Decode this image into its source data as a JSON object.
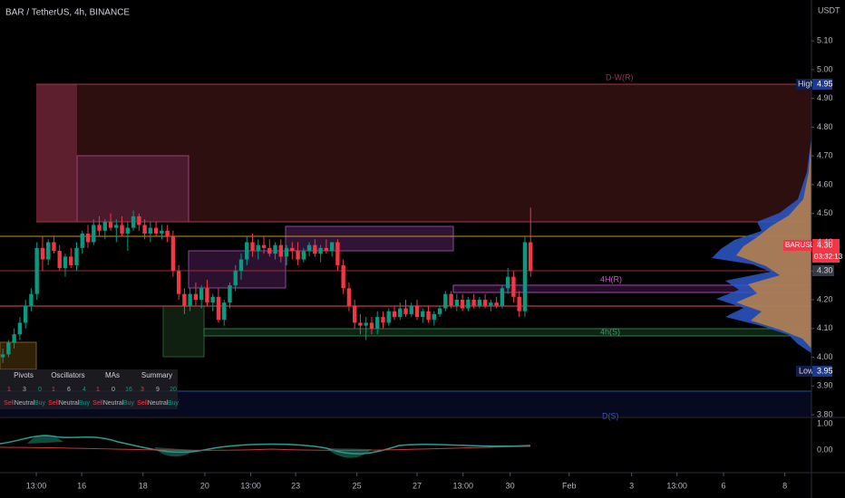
{
  "chart_data": {
    "type": "candlestick",
    "title": "BAR / TetherUS, 4h, BINANCE",
    "y_unit": "USDT",
    "up_color": "#089981",
    "down_color": "#f23645",
    "ohlc": [
      [
        4.0,
        4.03,
        3.98,
        4.01
      ],
      [
        4.01,
        4.06,
        4.0,
        4.05
      ],
      [
        4.05,
        4.1,
        4.03,
        4.08
      ],
      [
        4.08,
        4.14,
        4.06,
        4.12
      ],
      [
        4.12,
        4.2,
        4.1,
        4.18
      ],
      [
        4.18,
        4.24,
        4.16,
        4.22
      ],
      [
        4.22,
        4.4,
        4.2,
        4.38
      ],
      [
        4.38,
        4.42,
        4.3,
        4.34
      ],
      [
        4.34,
        4.41,
        4.32,
        4.4
      ],
      [
        4.4,
        4.42,
        4.36,
        4.37
      ],
      [
        4.37,
        4.39,
        4.3,
        4.31
      ],
      [
        4.31,
        4.36,
        4.28,
        4.35
      ],
      [
        4.35,
        4.38,
        4.31,
        4.32
      ],
      [
        4.32,
        4.4,
        4.3,
        4.38
      ],
      [
        4.38,
        4.44,
        4.36,
        4.43
      ],
      [
        4.43,
        4.46,
        4.38,
        4.4
      ],
      [
        4.4,
        4.48,
        4.39,
        4.46
      ],
      [
        4.46,
        4.49,
        4.42,
        4.44
      ],
      [
        4.44,
        4.48,
        4.41,
        4.47
      ],
      [
        4.47,
        4.5,
        4.44,
        4.45
      ],
      [
        4.45,
        4.48,
        4.4,
        4.46
      ],
      [
        4.46,
        4.49,
        4.42,
        4.43
      ],
      [
        4.43,
        4.47,
        4.37,
        4.45
      ],
      [
        4.45,
        4.51,
        4.44,
        4.49
      ],
      [
        4.49,
        4.5,
        4.44,
        4.46
      ],
      [
        4.46,
        4.48,
        4.41,
        4.43
      ],
      [
        4.43,
        4.47,
        4.4,
        4.45
      ],
      [
        4.45,
        4.47,
        4.42,
        4.43
      ],
      [
        4.43,
        4.46,
        4.41,
        4.44
      ],
      [
        4.44,
        4.46,
        4.4,
        4.42
      ],
      [
        4.42,
        4.44,
        4.28,
        4.3
      ],
      [
        4.3,
        4.32,
        4.2,
        4.22
      ],
      [
        4.22,
        4.24,
        4.15,
        4.18
      ],
      [
        4.18,
        4.24,
        4.16,
        4.22
      ],
      [
        4.22,
        4.26,
        4.18,
        4.2
      ],
      [
        4.2,
        4.25,
        4.17,
        4.24
      ],
      [
        4.24,
        4.27,
        4.18,
        4.19
      ],
      [
        4.19,
        4.22,
        4.16,
        4.21
      ],
      [
        4.21,
        4.24,
        4.12,
        4.13
      ],
      [
        4.13,
        4.2,
        4.11,
        4.19
      ],
      [
        4.19,
        4.26,
        4.17,
        4.25
      ],
      [
        4.25,
        4.32,
        4.23,
        4.3
      ],
      [
        4.3,
        4.36,
        4.27,
        4.34
      ],
      [
        4.34,
        4.42,
        4.32,
        4.4
      ],
      [
        4.4,
        4.43,
        4.35,
        4.37
      ],
      [
        4.37,
        4.41,
        4.34,
        4.39
      ],
      [
        4.39,
        4.42,
        4.36,
        4.38
      ],
      [
        4.38,
        4.41,
        4.35,
        4.36
      ],
      [
        4.36,
        4.4,
        4.34,
        4.39
      ],
      [
        4.39,
        4.41,
        4.33,
        4.35
      ],
      [
        4.35,
        4.39,
        4.32,
        4.38
      ],
      [
        4.38,
        4.4,
        4.34,
        4.37
      ],
      [
        4.37,
        4.4,
        4.32,
        4.34
      ],
      [
        4.34,
        4.38,
        4.33,
        4.37
      ],
      [
        4.37,
        4.4,
        4.35,
        4.39
      ],
      [
        4.39,
        4.41,
        4.35,
        4.36
      ],
      [
        4.36,
        4.39,
        4.33,
        4.38
      ],
      [
        4.38,
        4.41,
        4.36,
        4.37
      ],
      [
        4.37,
        4.4,
        4.35,
        4.4
      ],
      [
        4.4,
        4.41,
        4.3,
        4.32
      ],
      [
        4.32,
        4.34,
        4.22,
        4.24
      ],
      [
        4.24,
        4.26,
        4.16,
        4.18
      ],
      [
        4.18,
        4.2,
        4.1,
        4.12
      ],
      [
        4.12,
        4.15,
        4.08,
        4.11
      ],
      [
        4.11,
        4.14,
        4.06,
        4.12
      ],
      [
        4.12,
        4.14,
        4.08,
        4.1
      ],
      [
        4.1,
        4.16,
        4.08,
        4.14
      ],
      [
        4.14,
        4.16,
        4.1,
        4.12
      ],
      [
        4.12,
        4.17,
        4.11,
        4.16
      ],
      [
        4.16,
        4.18,
        4.13,
        4.14
      ],
      [
        4.14,
        4.19,
        4.13,
        4.17
      ],
      [
        4.17,
        4.2,
        4.14,
        4.15
      ],
      [
        4.15,
        4.19,
        4.14,
        4.18
      ],
      [
        4.18,
        4.2,
        4.13,
        4.14
      ],
      [
        4.14,
        4.17,
        4.12,
        4.16
      ],
      [
        4.16,
        4.18,
        4.12,
        4.13
      ],
      [
        4.13,
        4.16,
        4.11,
        4.15
      ],
      [
        4.15,
        4.18,
        4.14,
        4.17
      ],
      [
        4.17,
        4.23,
        4.16,
        4.22
      ],
      [
        4.22,
        4.23,
        4.17,
        4.18
      ],
      [
        4.18,
        4.22,
        4.16,
        4.2
      ],
      [
        4.2,
        4.22,
        4.16,
        4.17
      ],
      [
        4.17,
        4.21,
        4.16,
        4.2
      ],
      [
        4.2,
        4.22,
        4.17,
        4.18
      ],
      [
        4.18,
        4.21,
        4.17,
        4.2
      ],
      [
        4.2,
        4.22,
        4.17,
        4.18
      ],
      [
        4.18,
        4.2,
        4.16,
        4.19
      ],
      [
        4.19,
        4.21,
        4.17,
        4.18
      ],
      [
        4.18,
        4.25,
        4.17,
        4.24
      ],
      [
        4.24,
        4.31,
        4.22,
        4.28
      ],
      [
        4.28,
        4.3,
        4.19,
        4.21
      ],
      [
        4.21,
        4.23,
        4.14,
        4.16
      ],
      [
        4.16,
        4.42,
        4.14,
        4.4
      ],
      [
        4.4,
        4.52,
        4.28,
        4.3
      ]
    ],
    "xlim": [
      -0.5,
      142.5
    ],
    "xticks": [
      {
        "value": 5.9,
        "label": "13:00"
      },
      {
        "value": 13.9,
        "label": "16"
      },
      {
        "value": 24.7,
        "label": "18"
      },
      {
        "value": 35.6,
        "label": "20"
      },
      {
        "value": 43.7,
        "label": "13:00"
      },
      {
        "value": 51.6,
        "label": "23"
      },
      {
        "value": 62.4,
        "label": "25"
      },
      {
        "value": 73,
        "label": "27"
      },
      {
        "value": 81.1,
        "label": "13:00"
      },
      {
        "value": 89.4,
        "label": "30"
      },
      {
        "value": 99.8,
        "label": "Feb"
      },
      {
        "value": 110.8,
        "label": "3"
      },
      {
        "value": 118.8,
        "label": "13:00"
      },
      {
        "value": 127,
        "label": "6"
      },
      {
        "value": 137.8,
        "label": "8"
      }
    ],
    "ylim": [
      3.794,
      5.242
    ],
    "yticks": [
      {
        "value": 5.1,
        "label": "5.10"
      },
      {
        "value": 5.0,
        "label": "5.00"
      },
      {
        "value": 4.9,
        "label": "4.90"
      },
      {
        "value": 4.8,
        "label": "4.80"
      },
      {
        "value": 4.7,
        "label": "4.70"
      },
      {
        "value": 4.6,
        "label": "4.60"
      },
      {
        "value": 4.5,
        "label": "4.50"
      },
      {
        "value": 4.4,
        "label": "4.40"
      },
      {
        "value": 4.3,
        "label": "4.30"
      },
      {
        "value": 4.2,
        "label": "4.20"
      },
      {
        "value": 4.1,
        "label": "4.10"
      },
      {
        "value": 4.0,
        "label": "4.00"
      },
      {
        "value": 3.9,
        "label": "3.90"
      },
      {
        "value": 3.8,
        "label": "3.80"
      }
    ],
    "high": {
      "label": "High",
      "value": 4.95,
      "value_label": "4.95"
    },
    "low": {
      "label": "Low",
      "value": 3.95,
      "value_label": "3.95"
    },
    "last": {
      "symbol": "BARUSDT",
      "value": 4.3,
      "value_label": "4.30",
      "countdown": "03:32:13"
    },
    "level_labels": [
      "D-W(R)",
      "4H(R)",
      "4h(S)",
      "D(S)"
    ],
    "osc_ticks": [
      {
        "value": 1,
        "label": "1.00"
      },
      {
        "value": 0,
        "label": "0.00"
      }
    ],
    "ratings": {
      "columns": [
        "Sell",
        "Neutral",
        "Buy"
      ],
      "groups": [
        {
          "name": "Pivots",
          "values": [
            1,
            3,
            0
          ]
        },
        {
          "name": "Oscillators",
          "values": [
            1,
            6,
            4
          ]
        },
        {
          "name": "MAs",
          "values": [
            1,
            0,
            16
          ]
        },
        {
          "name": "Summary",
          "values": [
            3,
            9,
            20
          ]
        }
      ]
    }
  }
}
